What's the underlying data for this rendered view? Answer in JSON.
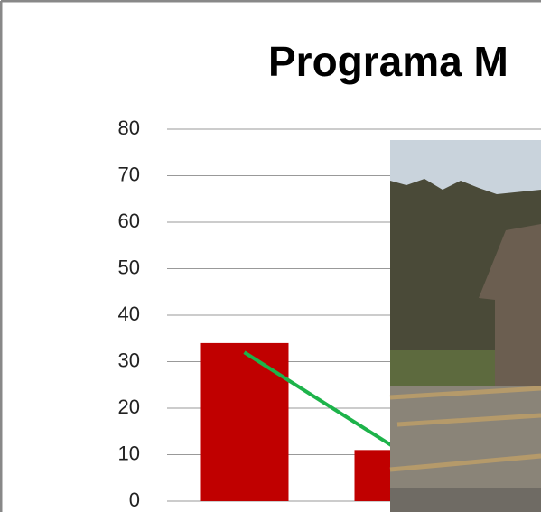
{
  "chart_data": {
    "type": "bar",
    "title": "Programa M",
    "categories": [
      null,
      null
    ],
    "series": [
      {
        "type": "bar",
        "color": "#c00000",
        "values": [
          34,
          11
        ]
      },
      {
        "type": "line",
        "color": "#1db34a",
        "values": [
          32,
          11
        ]
      }
    ],
    "ylim": [
      0,
      80
    ],
    "yticks": [
      0,
      10,
      20,
      30,
      40,
      50,
      60,
      70,
      80
    ],
    "grid": true
  }
}
